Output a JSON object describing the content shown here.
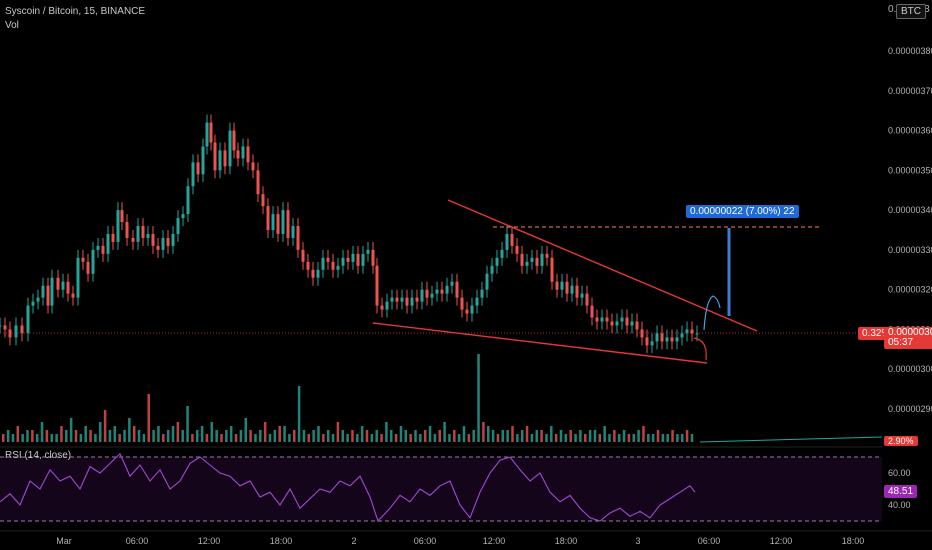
{
  "header": {
    "symbol_line": "Syscoin / Bitcoin, 15, BINANCE",
    "vol_label": "Vol",
    "rsi_label": "RSI (14, close)"
  },
  "currency_button": "BTC",
  "top_partial_tick": "0.000003",
  "chart_data": {
    "type": "candlestick",
    "price_axis": {
      "ticks": [
        "0.00000380",
        "0.00000370",
        "0.00000360",
        "0.00000350",
        "0.00000340",
        "0.00000330",
        "0.00000320",
        "0.00000310",
        "0.00000300",
        "0.00000290"
      ],
      "min": 2.9e-06,
      "max": 3.8e-06
    },
    "time_axis": {
      "ticks": [
        "Mar",
        "06:00",
        "12:00",
        "18:00",
        "2",
        "06:00",
        "12:00",
        "18:00",
        "3",
        "06:00",
        "12:00",
        "18:00"
      ]
    },
    "current_price": {
      "change": "0.32%",
      "value": "0.00000309",
      "countdown": "05:37"
    },
    "measure_label": "0.00000022 (7.00%) 22",
    "volume_badge": "2.90%",
    "rsi": {
      "ticks": [
        "60.00",
        "40.00"
      ],
      "value": "48.51",
      "upper": 70,
      "lower": 30
    },
    "price_path": [
      [
        0,
        3.11
      ],
      [
        5,
        3.1
      ],
      [
        10,
        3.08
      ],
      [
        16,
        3.11
      ],
      [
        22,
        3.09
      ],
      [
        28,
        3.16
      ],
      [
        33,
        3.17
      ],
      [
        38,
        3.18
      ],
      [
        43,
        3.21
      ],
      [
        48,
        3.16
      ],
      [
        52,
        3.23
      ],
      [
        58,
        3.2
      ],
      [
        63,
        3.22
      ],
      [
        68,
        3.19
      ],
      [
        73,
        3.18
      ],
      [
        78,
        3.28
      ],
      [
        83,
        3.27
      ],
      [
        88,
        3.24
      ],
      [
        93,
        3.3
      ],
      [
        98,
        3.31
      ],
      [
        103,
        3.29
      ],
      [
        108,
        3.34
      ],
      [
        113,
        3.32
      ],
      [
        118,
        3.4
      ],
      [
        122,
        3.37
      ],
      [
        127,
        3.33
      ],
      [
        133,
        3.32
      ],
      [
        138,
        3.36
      ],
      [
        143,
        3.33
      ],
      [
        148,
        3.34
      ],
      [
        153,
        3.31
      ],
      [
        158,
        3.3
      ],
      [
        163,
        3.33
      ],
      [
        168,
        3.31
      ],
      [
        173,
        3.34
      ],
      [
        178,
        3.38
      ],
      [
        183,
        3.39
      ],
      [
        188,
        3.46
      ],
      [
        193,
        3.52
      ],
      [
        198,
        3.49
      ],
      [
        203,
        3.56
      ],
      [
        207,
        3.62
      ],
      [
        211,
        3.57
      ],
      [
        215,
        3.5
      ],
      [
        220,
        3.55
      ],
      [
        225,
        3.51
      ],
      [
        230,
        3.6
      ],
      [
        234,
        3.55
      ],
      [
        238,
        3.53
      ],
      [
        243,
        3.56
      ],
      [
        248,
        3.52
      ],
      [
        253,
        3.5
      ],
      [
        258,
        3.44
      ],
      [
        263,
        3.41
      ],
      [
        268,
        3.35
      ],
      [
        273,
        3.39
      ],
      [
        278,
        3.34
      ],
      [
        283,
        3.4
      ],
      [
        288,
        3.33
      ],
      [
        293,
        3.36
      ],
      [
        298,
        3.3
      ],
      [
        303,
        3.27
      ],
      [
        308,
        3.25
      ],
      [
        313,
        3.23
      ],
      [
        318,
        3.25
      ],
      [
        323,
        3.28
      ],
      [
        328,
        3.27
      ],
      [
        333,
        3.25
      ],
      [
        338,
        3.26
      ],
      [
        343,
        3.28
      ],
      [
        348,
        3.27
      ],
      [
        353,
        3.29
      ],
      [
        358,
        3.26
      ],
      [
        363,
        3.29
      ],
      [
        368,
        3.3
      ],
      [
        373,
        3.26
      ],
      [
        377,
        3.16
      ],
      [
        382,
        3.15
      ],
      [
        387,
        3.17
      ],
      [
        392,
        3.18
      ],
      [
        397,
        3.17
      ],
      [
        402,
        3.18
      ],
      [
        407,
        3.16
      ],
      [
        412,
        3.18
      ],
      [
        417,
        3.17
      ],
      [
        422,
        3.2
      ],
      [
        427,
        3.18
      ],
      [
        432,
        3.19
      ],
      [
        437,
        3.2
      ],
      [
        442,
        3.19
      ],
      [
        447,
        3.21
      ],
      [
        452,
        3.22
      ],
      [
        457,
        3.18
      ],
      [
        462,
        3.15
      ],
      [
        467,
        3.14
      ],
      [
        472,
        3.16
      ],
      [
        477,
        3.18
      ],
      [
        482,
        3.2
      ],
      [
        487,
        3.24
      ],
      [
        492,
        3.26
      ],
      [
        497,
        3.28
      ],
      [
        502,
        3.3
      ],
      [
        507,
        3.34
      ],
      [
        512,
        3.31
      ],
      [
        517,
        3.29
      ],
      [
        522,
        3.26
      ],
      [
        527,
        3.27
      ],
      [
        532,
        3.28
      ],
      [
        537,
        3.26
      ],
      [
        542,
        3.29
      ],
      [
        547,
        3.28
      ],
      [
        552,
        3.22
      ],
      [
        557,
        3.2
      ],
      [
        562,
        3.22
      ],
      [
        567,
        3.19
      ],
      [
        572,
        3.21
      ],
      [
        577,
        3.18
      ],
      [
        582,
        3.19
      ],
      [
        587,
        3.16
      ],
      [
        592,
        3.13
      ],
      [
        597,
        3.12
      ],
      [
        602,
        3.13
      ],
      [
        607,
        3.12
      ],
      [
        612,
        3.11
      ],
      [
        617,
        3.12
      ],
      [
        622,
        3.13
      ],
      [
        627,
        3.11
      ],
      [
        632,
        3.12
      ],
      [
        637,
        3.1
      ],
      [
        642,
        3.08
      ],
      [
        647,
        3.06
      ],
      [
        652,
        3.07
      ],
      [
        657,
        3.09
      ],
      [
        662,
        3.07
      ],
      [
        667,
        3.08
      ],
      [
        672,
        3.07
      ],
      [
        677,
        3.08
      ],
      [
        682,
        3.09
      ],
      [
        687,
        3.1
      ],
      [
        692,
        3.09
      ],
      [
        697,
        3.09
      ]
    ],
    "volume": [
      2,
      3,
      2,
      4,
      2,
      3,
      3,
      2,
      5,
      3,
      2,
      2,
      4,
      3,
      6,
      3,
      2,
      4,
      3,
      2,
      5,
      8,
      3,
      4,
      2,
      3,
      6,
      4,
      3,
      2,
      12,
      3,
      4,
      2,
      3,
      4,
      5,
      3,
      9,
      2,
      3,
      4,
      2,
      5,
      3,
      2,
      3,
      4,
      2,
      3,
      6,
      3,
      2,
      3,
      5,
      2,
      3,
      4,
      4,
      2,
      3,
      14,
      3,
      2,
      3,
      4,
      2,
      3,
      2,
      5,
      3,
      2,
      3,
      2,
      4,
      3,
      2,
      3,
      2,
      5,
      3,
      2,
      4,
      3,
      2,
      3,
      2,
      3,
      4,
      2,
      3,
      5,
      2,
      3,
      2,
      4,
      2,
      3,
      22,
      5,
      4,
      3,
      2,
      3,
      3,
      4,
      2,
      3,
      4,
      2,
      3,
      3,
      2,
      4,
      2,
      3,
      2,
      3,
      2,
      3,
      2,
      3,
      3,
      2,
      4,
      2,
      3,
      2,
      3,
      2,
      2,
      3,
      4,
      2,
      2,
      3,
      2,
      2,
      3,
      2,
      2,
      3,
      2
    ],
    "rsi_path": [
      [
        0,
        42
      ],
      [
        10,
        47
      ],
      [
        20,
        40
      ],
      [
        30,
        55
      ],
      [
        40,
        50
      ],
      [
        50,
        62
      ],
      [
        60,
        55
      ],
      [
        70,
        58
      ],
      [
        80,
        50
      ],
      [
        90,
        64
      ],
      [
        100,
        60
      ],
      [
        110,
        66
      ],
      [
        120,
        72
      ],
      [
        130,
        58
      ],
      [
        140,
        65
      ],
      [
        150,
        55
      ],
      [
        160,
        62
      ],
      [
        170,
        50
      ],
      [
        180,
        55
      ],
      [
        190,
        66
      ],
      [
        200,
        70
      ],
      [
        210,
        65
      ],
      [
        220,
        60
      ],
      [
        230,
        58
      ],
      [
        240,
        52
      ],
      [
        250,
        55
      ],
      [
        260,
        45
      ],
      [
        270,
        48
      ],
      [
        280,
        40
      ],
      [
        290,
        50
      ],
      [
        300,
        38
      ],
      [
        310,
        44
      ],
      [
        320,
        50
      ],
      [
        330,
        48
      ],
      [
        340,
        55
      ],
      [
        350,
        52
      ],
      [
        360,
        58
      ],
      [
        370,
        45
      ],
      [
        378,
        30
      ],
      [
        390,
        38
      ],
      [
        400,
        46
      ],
      [
        410,
        42
      ],
      [
        420,
        50
      ],
      [
        430,
        46
      ],
      [
        440,
        52
      ],
      [
        450,
        55
      ],
      [
        460,
        40
      ],
      [
        470,
        32
      ],
      [
        480,
        48
      ],
      [
        490,
        60
      ],
      [
        500,
        68
      ],
      [
        510,
        70
      ],
      [
        520,
        62
      ],
      [
        530,
        55
      ],
      [
        540,
        60
      ],
      [
        550,
        48
      ],
      [
        560,
        42
      ],
      [
        570,
        46
      ],
      [
        580,
        38
      ],
      [
        590,
        32
      ],
      [
        600,
        30
      ],
      [
        610,
        35
      ],
      [
        620,
        38
      ],
      [
        630,
        33
      ],
      [
        640,
        36
      ],
      [
        650,
        32
      ],
      [
        660,
        40
      ],
      [
        670,
        44
      ],
      [
        680,
        48
      ],
      [
        690,
        52
      ],
      [
        695,
        48
      ]
    ]
  }
}
